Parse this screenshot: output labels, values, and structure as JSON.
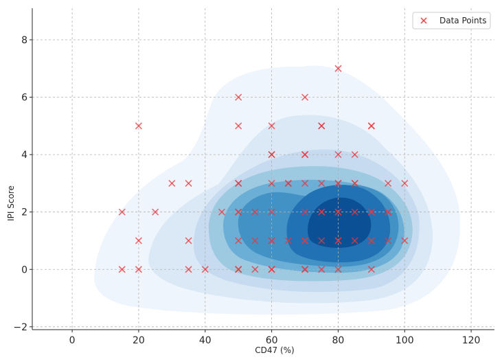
{
  "chart_data": {
    "type": "scatter",
    "title": "",
    "xlabel": "CD47 (%)",
    "ylabel": "IPI Score",
    "xlim": [
      -12,
      127
    ],
    "ylim": [
      -2.1,
      9.1
    ],
    "xticks": [
      0,
      20,
      40,
      60,
      80,
      100,
      120
    ],
    "yticks": [
      -2,
      0,
      2,
      4,
      6,
      8
    ],
    "grid": true,
    "legend_position": "top-right",
    "overlay": "kde-density-contours",
    "colors": {
      "marker": "#e8383d",
      "density": [
        "#eff5fc",
        "#dbe9f6",
        "#c6dbef",
        "#9ecae1",
        "#6baed6",
        "#4292c6",
        "#2171b5",
        "#0b4f95"
      ]
    },
    "series": [
      {
        "name": "Data Points",
        "marker": "x",
        "points": [
          [
            15,
            0
          ],
          [
            15,
            2
          ],
          [
            20,
            0
          ],
          [
            20,
            1
          ],
          [
            20,
            5
          ],
          [
            25,
            2
          ],
          [
            30,
            3
          ],
          [
            35,
            0
          ],
          [
            35,
            1
          ],
          [
            35,
            3
          ],
          [
            40,
            0
          ],
          [
            45,
            2
          ],
          [
            50,
            0
          ],
          [
            50,
            0
          ],
          [
            50,
            1
          ],
          [
            50,
            2
          ],
          [
            50,
            2
          ],
          [
            50,
            3
          ],
          [
            50,
            3
          ],
          [
            50,
            5
          ],
          [
            50,
            6
          ],
          [
            55,
            0
          ],
          [
            55,
            1
          ],
          [
            55,
            2
          ],
          [
            60,
            0
          ],
          [
            60,
            0
          ],
          [
            60,
            1
          ],
          [
            60,
            1
          ],
          [
            60,
            2
          ],
          [
            60,
            3
          ],
          [
            60,
            4
          ],
          [
            60,
            4
          ],
          [
            60,
            5
          ],
          [
            65,
            1
          ],
          [
            65,
            3
          ],
          [
            65,
            3
          ],
          [
            70,
            0
          ],
          [
            70,
            0
          ],
          [
            70,
            1
          ],
          [
            70,
            1
          ],
          [
            70,
            2
          ],
          [
            70,
            3
          ],
          [
            70,
            4
          ],
          [
            70,
            4
          ],
          [
            70,
            6
          ],
          [
            75,
            0
          ],
          [
            75,
            1
          ],
          [
            75,
            2
          ],
          [
            75,
            2
          ],
          [
            75,
            3
          ],
          [
            75,
            5
          ],
          [
            75,
            5
          ],
          [
            80,
            0
          ],
          [
            80,
            1
          ],
          [
            80,
            1
          ],
          [
            80,
            2
          ],
          [
            80,
            2
          ],
          [
            80,
            3
          ],
          [
            80,
            3
          ],
          [
            80,
            4
          ],
          [
            80,
            7
          ],
          [
            85,
            1
          ],
          [
            85,
            2
          ],
          [
            85,
            3
          ],
          [
            85,
            3
          ],
          [
            85,
            4
          ],
          [
            90,
            0
          ],
          [
            90,
            1
          ],
          [
            90,
            1
          ],
          [
            90,
            2
          ],
          [
            90,
            2
          ],
          [
            90,
            5
          ],
          [
            90,
            5
          ],
          [
            95,
            1
          ],
          [
            95,
            2
          ],
          [
            95,
            2
          ],
          [
            95,
            3
          ],
          [
            100,
            1
          ],
          [
            100,
            3
          ]
        ]
      }
    ]
  }
}
